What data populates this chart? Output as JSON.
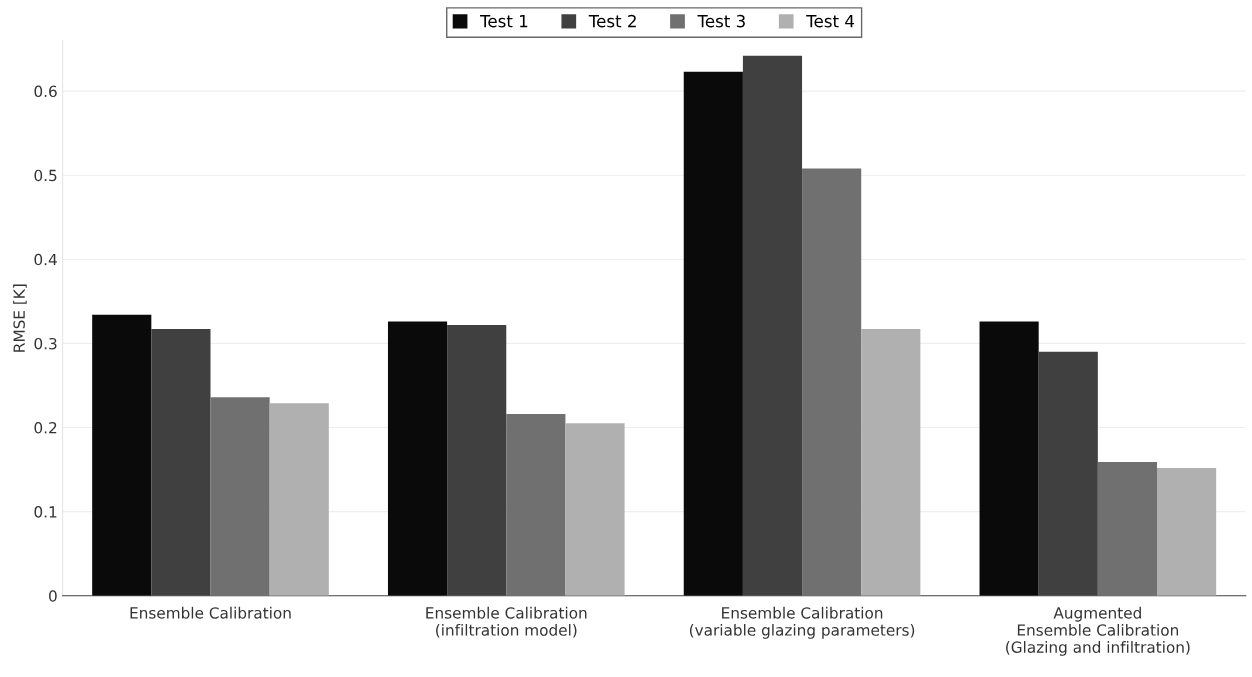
{
  "chart_data": {
    "type": "bar",
    "ylabel": "RMSE [K]",
    "categories": [
      "Ensemble Calibration",
      "Ensemble Calibration\n(infiltration model)",
      "Ensemble Calibration\n(variable glazing parameters)",
      "Augmented\nEnsemble Calibration\n(Glazing and infiltration)"
    ],
    "series": [
      {
        "name": "Test 1",
        "color": "#0a0a0a",
        "values": [
          0.334,
          0.326,
          0.623,
          0.326
        ]
      },
      {
        "name": "Test 2",
        "color": "#404040",
        "values": [
          0.317,
          0.322,
          0.642,
          0.29
        ]
      },
      {
        "name": "Test 3",
        "color": "#707070",
        "values": [
          0.236,
          0.216,
          0.508,
          0.159
        ]
      },
      {
        "name": "Test 4",
        "color": "#b0b0b0",
        "values": [
          0.229,
          0.205,
          0.317,
          0.152
        ]
      }
    ],
    "ylim": [
      0,
      0.66
    ],
    "yticks": [
      0,
      0.1,
      0.2,
      0.3,
      0.4,
      0.5,
      0.6
    ],
    "grid": "y",
    "legend": "top"
  }
}
